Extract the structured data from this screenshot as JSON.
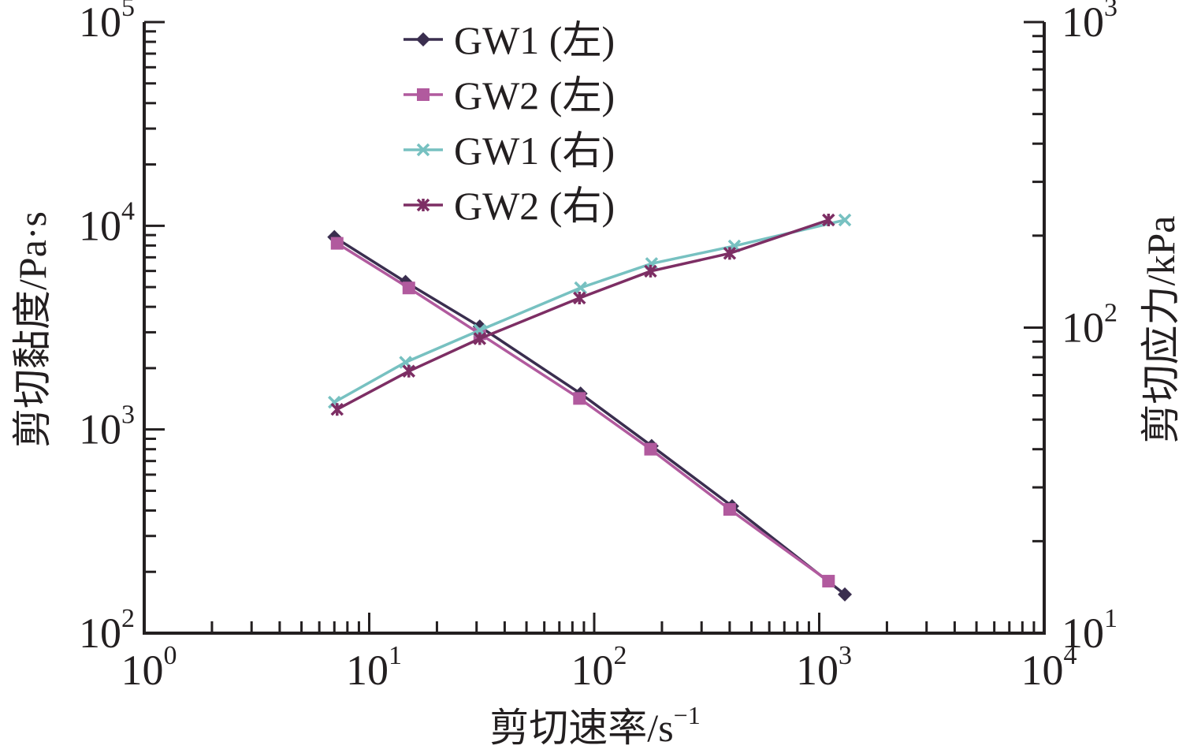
{
  "chart_data": {
    "type": "line",
    "xlabel": "剪切速率/s",
    "xlabel_unit_exponent": "−1",
    "ylabel_left": "剪切黏度/Pa·s",
    "ylabel_right": "剪切应力/kPa",
    "x_scale": "log",
    "y_left_scale": "log",
    "y_right_scale": "log",
    "xlim": [
      1,
      10000
    ],
    "ylim_left": [
      100,
      100000
    ],
    "ylim_right": [
      10,
      1000
    ],
    "x_ticks": [
      {
        "base": "10",
        "exp": "0"
      },
      {
        "base": "10",
        "exp": "1"
      },
      {
        "base": "10",
        "exp": "2"
      },
      {
        "base": "10",
        "exp": "3"
      },
      {
        "base": "10",
        "exp": "4"
      }
    ],
    "y_left_ticks": [
      {
        "base": "10",
        "exp": "2"
      },
      {
        "base": "10",
        "exp": "3"
      },
      {
        "base": "10",
        "exp": "4"
      },
      {
        "base": "10",
        "exp": "5"
      }
    ],
    "y_right_ticks": [
      {
        "base": "10",
        "exp": "1"
      },
      {
        "base": "10",
        "exp": "2"
      },
      {
        "base": "10",
        "exp": "3"
      }
    ],
    "grid": false,
    "legend_position": "top-center",
    "series": [
      {
        "name": "GW1 (左)",
        "axis": "left",
        "marker": "diamond",
        "color": "#3a2e4f",
        "x": [
          7.0,
          14.5,
          31,
          87,
          180,
          410,
          1300
        ],
        "y": [
          8800,
          5300,
          3200,
          1500,
          830,
          420,
          155
        ]
      },
      {
        "name": "GW2 (左)",
        "axis": "left",
        "marker": "square",
        "color": "#b15a9e",
        "x": [
          7.2,
          15,
          31,
          86,
          178,
          400,
          1100
        ],
        "y": [
          8200,
          4950,
          2950,
          1420,
          800,
          405,
          180
        ]
      },
      {
        "name": "GW1 (右)",
        "axis": "right",
        "marker": "x",
        "color": "#77c1c1",
        "x": [
          7.0,
          14.5,
          31,
          87,
          180,
          420,
          1300
        ],
        "y": [
          57,
          77,
          98,
          135,
          162,
          185,
          225
        ]
      },
      {
        "name": "GW2 (右)",
        "axis": "right",
        "marker": "star",
        "color": "#7d2e64",
        "x": [
          7.2,
          15,
          31,
          86,
          178,
          400,
          1100
        ],
        "y": [
          54,
          72,
          92,
          125,
          153,
          175,
          225
        ]
      }
    ]
  }
}
